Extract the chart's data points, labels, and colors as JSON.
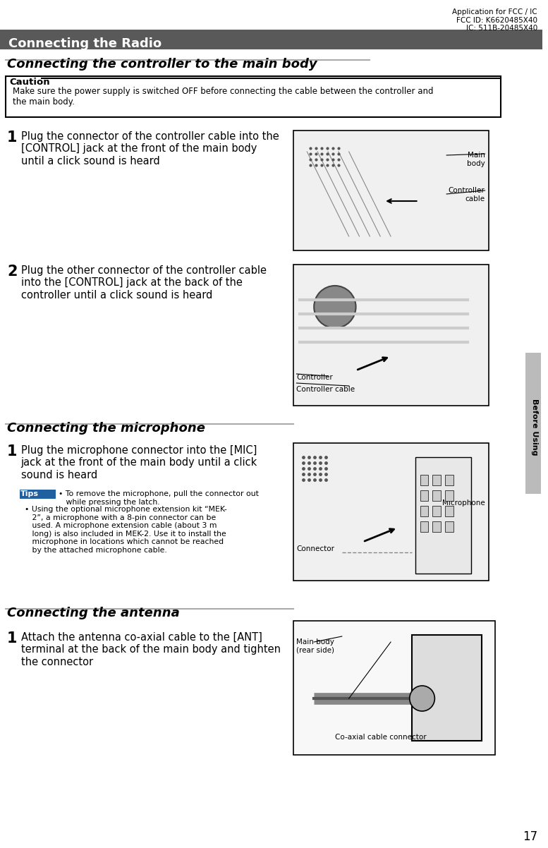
{
  "page_num": "17",
  "top_right_text": "Application for FCC / IC\nFCC ID: K6620485X40\nIC: 511B-20485X40",
  "header_bar_text": "Connecting the Radio",
  "header_bar_color": "#595959",
  "header_bar_text_color": "#ffffff",
  "section1_title": "Connecting the controller to the main body",
  "caution_label": "Caution",
  "caution_text": "Make sure the power supply is switched OFF before connecting the cable between the controller and\nthe main body.",
  "step1_num": "1",
  "step1_text": "Plug the connector of the controller cable into the\n[CONTROL] jack at the front of the main body\nuntil a click sound is heard",
  "step1_labels": [
    "Main\nbody",
    "Controller\ncable"
  ],
  "step2_num": "2",
  "step2_text": "Plug the other connector of the controller cable\ninto the [CONTROL] jack at the back of the\ncontroller until a click sound is heard",
  "step2_labels": [
    "Controller",
    "Controller cable"
  ],
  "section2_title": "Connecting the microphone",
  "step3_num": "1",
  "step3_text": "Plug the microphone connector into the [MIC]\njack at the front of the main body until a click\nsound is heard",
  "tips_label": "Tips",
  "tips_text1": "• To remove the microphone, pull the connector out\n   while pressing the latch.",
  "tips_text2": "• Using the optional microphone extension kit “MEK-\n   2”, a microphone with a 8-pin connector can be\n   used. A microphone extension cable (about 3 m\n   long) is also included in MEK-2. Use it to install the\n   microphone in locations which cannot be reached\n   by the attached microphone cable.",
  "step3_labels": [
    "Microphone",
    "Connector"
  ],
  "section3_title": "Connecting the antenna",
  "step4_num": "1",
  "step4_text": "Attach the antenna co-axial cable to the [ANT]\nterminal at the back of the main body and tighten\nthe connector",
  "step4_labels": [
    "Main body\n(rear side)",
    "Co-axial cable connector"
  ],
  "sidebar_text": "Before Using",
  "sidebar_color": "#808080",
  "bg_color": "#ffffff",
  "text_color": "#000000",
  "title_underline_color": "#808080",
  "section_title_color": "#000000",
  "tips_bg_color": "#2060a0"
}
